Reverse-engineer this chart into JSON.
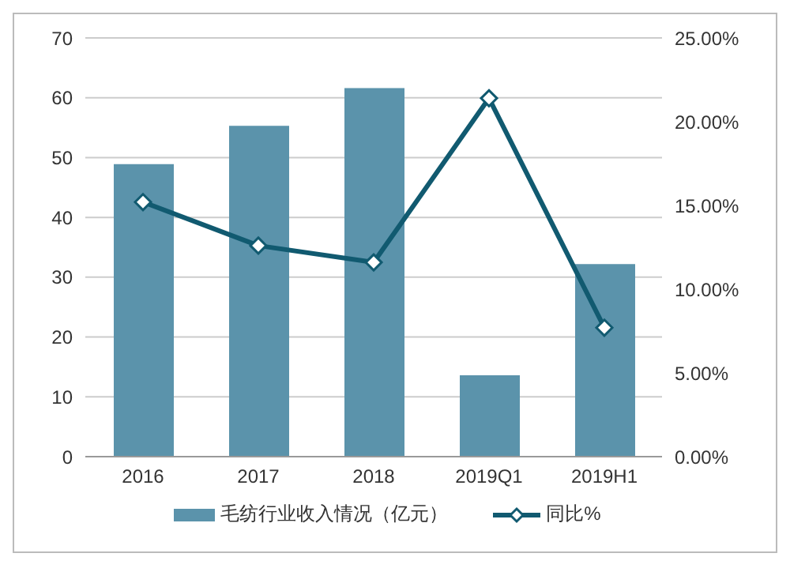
{
  "chart_data": {
    "type": "bar",
    "categories": [
      "2016",
      "2017",
      "2018",
      "2019Q1",
      "2019H1"
    ],
    "series": [
      {
        "name": "毛纺行业收入情况（亿元）",
        "color": "#5b93ab",
        "values": [
          48.9,
          55.3,
          61.6,
          13.6,
          32.2
        ]
      },
      {
        "name": "同比%",
        "type": "line",
        "axis": "y2",
        "color": "#115a70",
        "values": [
          15.2,
          12.6,
          11.6,
          21.4,
          7.7
        ]
      }
    ],
    "ylim": [
      0,
      70
    ],
    "yticks": [
      0,
      10,
      20,
      30,
      40,
      50,
      60,
      70
    ],
    "y2lim": [
      0,
      25
    ],
    "y2ticks": [
      {
        "value": 0,
        "label": "0.00%"
      },
      {
        "value": 5,
        "label": "5.00%"
      },
      {
        "value": 10,
        "label": "10.00%"
      },
      {
        "value": 15,
        "label": "15.00%"
      },
      {
        "value": 20,
        "label": "20.00%"
      },
      {
        "value": 25,
        "label": "25.00%"
      }
    ],
    "grid": "y",
    "legend": "bottom",
    "marker": "diamond"
  }
}
